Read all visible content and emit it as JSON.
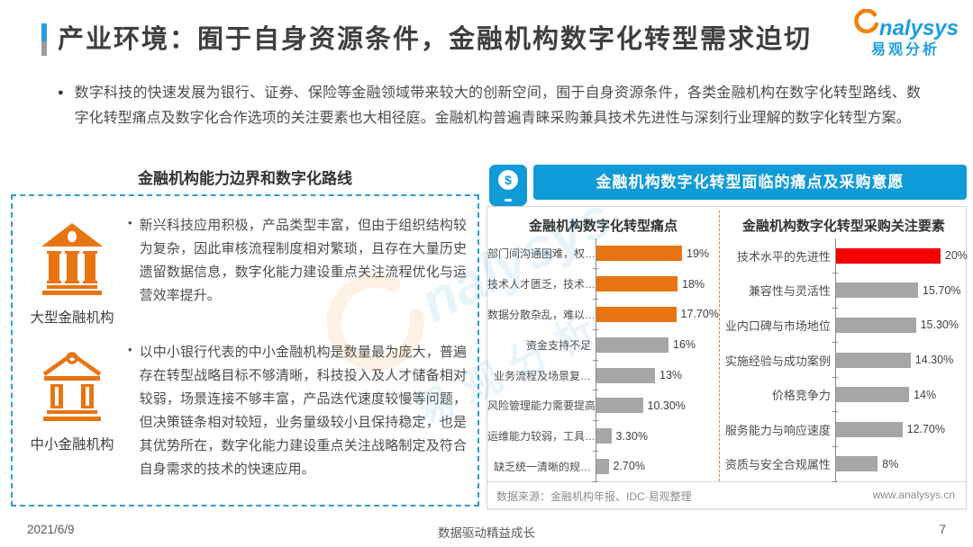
{
  "page": {
    "title": "产业环境：囿于自身资源条件，金融机构数字化转型需求迫切",
    "intro": "数字科技的快速发展为银行、证券、保险等金融领域带来较大的创新空间，囿于自身资源条件，各类金融机构在数字化转型路线、数字化转型痛点及数字化合作选项的关注要素也大相径庭。金融机构普遍青睐采购兼具技术先进性与深刻行业理解的数字化转型方案。",
    "footer": {
      "date": "2021/6/9",
      "slogan": "数据驱动精益成长",
      "page_number": "7"
    }
  },
  "ui": {
    "bullet_circle": "●",
    "bullet_dot": "•"
  },
  "logo": {
    "name": "Analysys",
    "text": "nalysys",
    "text_cn": "易观分析"
  },
  "left_panel": {
    "heading": "金融机构能力边界和数字化路线",
    "items": [
      {
        "icon": "bank-large-icon",
        "label": "大型金融机构",
        "text": "新兴科技应用积极，产品类型丰富，但由于组织结构较为复杂，因此审核流程制度相对繁琐，且存在大量历史遗留数据信息，数字化能力建设重点关注流程优化与运营效率提升。"
      },
      {
        "icon": "bank-small-icon",
        "label": "中小金融机构",
        "text": "以中小银行代表的中小金融机构是数量最为庞大，普遍存在转型战略目标不够清晰，科技投入及人才储备相对较弱，场景连接不够丰富，产品迭代速度较慢等问题，但决策链条相对较短，业务量级较小且保持稳定，也是其优势所在，数字化能力建设重点关注战略制定及符合自身需求的技术的快速应用。"
      }
    ]
  },
  "right_panel": {
    "heading": "金融机构数字化转型面临的痛点及采购意愿",
    "source": "数据来源：金融机构年报、IDC·易观整理",
    "website": "www.analysys.cn"
  },
  "colors": {
    "accent_blue": "#0f9ad8",
    "dashed_border_blue": "#2f9cd8",
    "brand_orange": "#e87511",
    "bar_orange": "#e87511",
    "bar_red": "#f40000",
    "bar_gray": "#a6a6a6",
    "divider_orange": "#ed7d31",
    "logo_blue": "#1b9de2",
    "logo_orange": "#f08300"
  },
  "chart_data": [
    {
      "type": "bar",
      "orientation": "horizontal",
      "title": "金融机构数字化转型痛点",
      "categories": [
        "部门间沟通困难，权…",
        "技术人才匮乏，技术…",
        "数据分散杂乱，难以…",
        "资金支持不足",
        "业务流程及场景复…",
        "风险管理能力需要提高",
        "运维能力较弱，工具…",
        "缺乏统一清晰的规…"
      ],
      "values": [
        19,
        18,
        17.7,
        16,
        13,
        10.3,
        3.3,
        2.7
      ],
      "value_labels": [
        "19%",
        "18%",
        "17.70%",
        "16%",
        "13%",
        "10.30%",
        "3.30%",
        "2.70%"
      ],
      "bar_colors": [
        "#e87511",
        "#e87511",
        "#e87511",
        "#a6a6a6",
        "#a6a6a6",
        "#a6a6a6",
        "#a6a6a6",
        "#a6a6a6"
      ],
      "xlim": [
        0,
        20
      ],
      "grid": false,
      "legend": false
    },
    {
      "type": "bar",
      "orientation": "horizontal",
      "title": "金融机构数字化转型采购关注要素",
      "categories": [
        "技术水平的先进性",
        "兼容性与灵活性",
        "业内口碑与市场地位",
        "实施经验与成功案例",
        "价格竞争力",
        "服务能力与响应速度",
        "资质与安全合规属性"
      ],
      "values": [
        20,
        15.7,
        15.3,
        14.3,
        14,
        12.7,
        8
      ],
      "value_labels": [
        "20%",
        "15.70%",
        "15.30%",
        "14.30%",
        "14%",
        "12.70%",
        "8%"
      ],
      "bar_colors": [
        "#f40000",
        "#a6a6a6",
        "#a6a6a6",
        "#a6a6a6",
        "#a6a6a6",
        "#a6a6a6",
        "#a6a6a6"
      ],
      "xlim": [
        0,
        20
      ],
      "grid": false,
      "legend": false
    }
  ]
}
